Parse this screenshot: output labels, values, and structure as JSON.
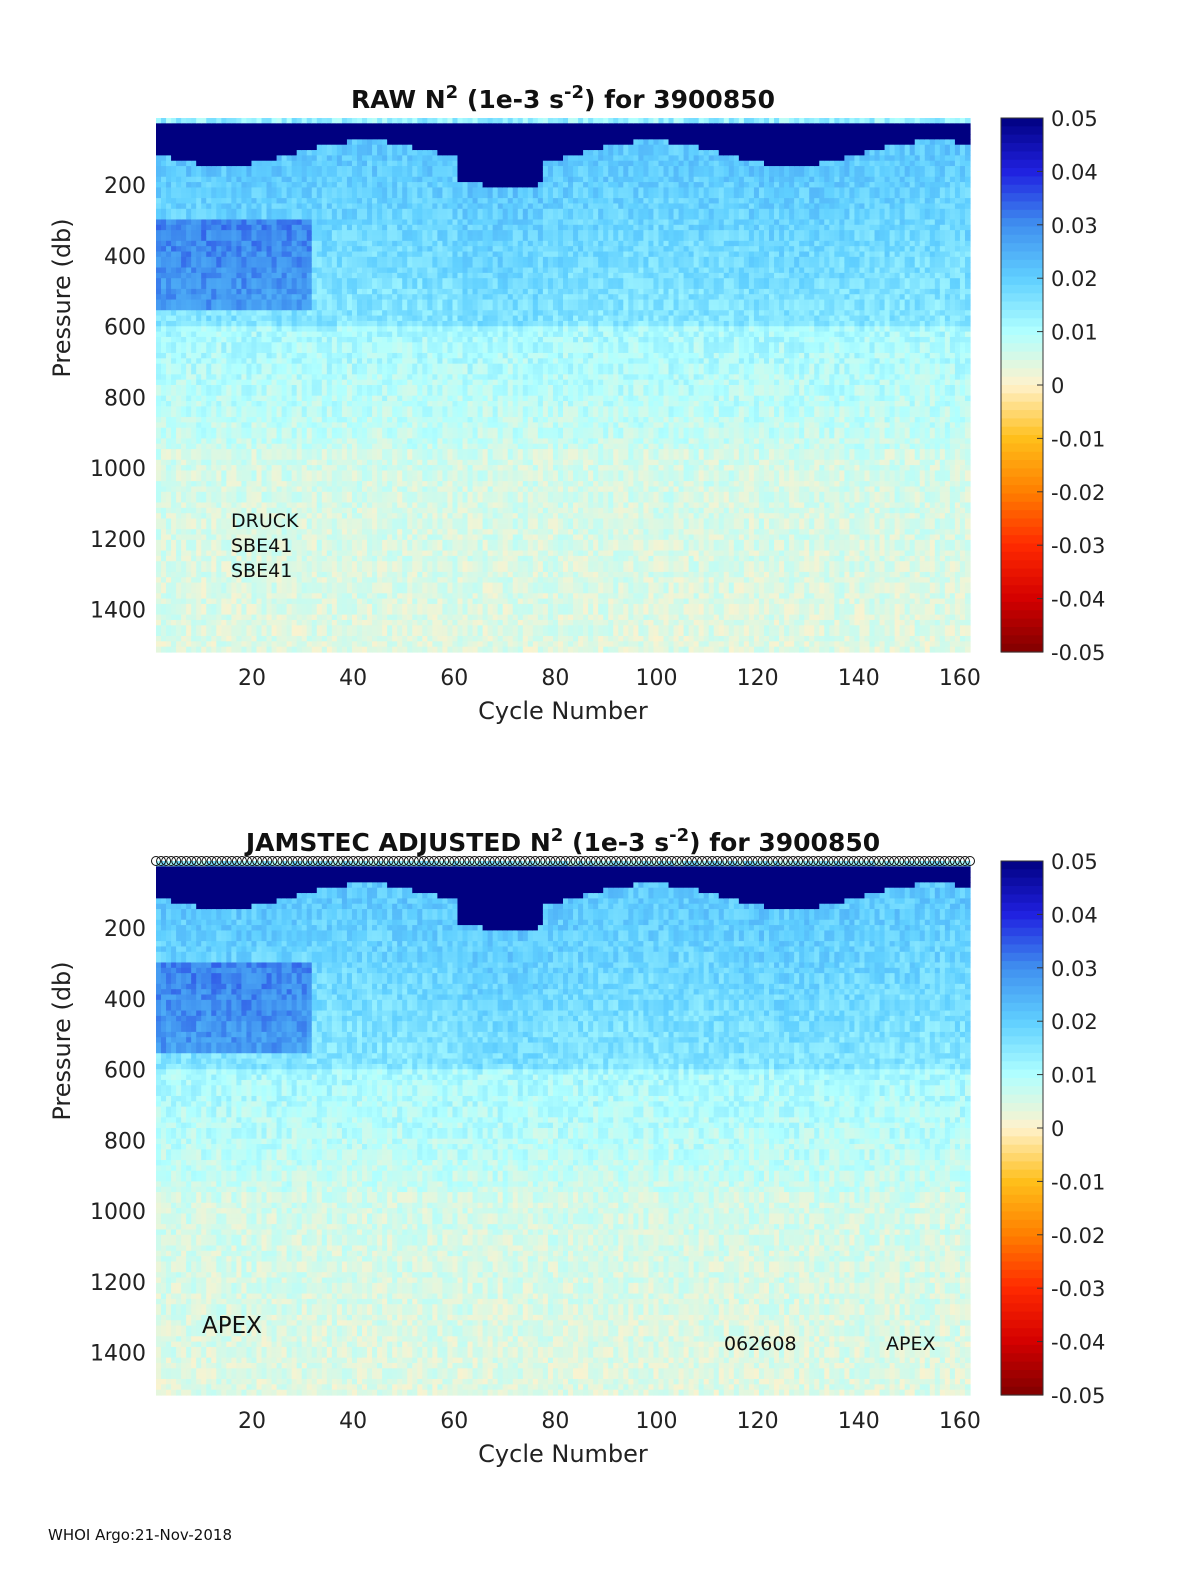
{
  "footer": "WHOI Argo:21-Nov-2018",
  "chart_data": [
    {
      "type": "heatmap",
      "title_parts": [
        "RAW N",
        "2",
        " (1e-3 s",
        "-2",
        ") for 3900850"
      ],
      "xlabel": "Cycle Number",
      "ylabel": "Pressure (db)",
      "xlim": [
        1,
        162
      ],
      "ylim": [
        1520,
        10
      ],
      "x_ticks": [
        20,
        40,
        60,
        80,
        100,
        120,
        140,
        160
      ],
      "y_ticks": [
        200,
        400,
        600,
        800,
        1000,
        1200,
        1400
      ],
      "colorbar": {
        "range": [
          -0.05,
          0.05
        ],
        "ticks": [
          "0.05",
          "0.04",
          "0.03",
          "0.02",
          "0.01",
          "0",
          "-0.01",
          "-0.02",
          "-0.03",
          "-0.04",
          "-0.05"
        ],
        "colors": [
          "#800000",
          "#d40000",
          "#ff2a00",
          "#ff7f00",
          "#ffbf1a",
          "#fff2cc",
          "#b0ffff",
          "#5fcfff",
          "#3f8fef",
          "#2020e0",
          "#000080"
        ]
      },
      "annotations": [
        "DRUCK",
        "SBE41",
        "SBE41"
      ],
      "show_markers": false,
      "description_of_values": "Stratification N2 per cycle/pressure: ~0.05 (saturated) at 10-150 db, ~0.02-0.03 at 150-600 db (strongest cycles 1-30, ~350-500 db), ~0.01 at 600-900 db, ~0.004-0.006 below 1000 db"
    },
    {
      "type": "heatmap",
      "title_parts": [
        "JAMSTEC  ADJUSTED N",
        "2",
        " (1e-3 s",
        "-2",
        ") for 3900850"
      ],
      "xlabel": "Cycle Number",
      "ylabel": "Pressure (db)",
      "xlim": [
        1,
        162
      ],
      "ylim": [
        1520,
        10
      ],
      "x_ticks": [
        20,
        40,
        60,
        80,
        100,
        120,
        140,
        160
      ],
      "y_ticks": [
        200,
        400,
        600,
        800,
        1000,
        1200,
        1400
      ],
      "colorbar": {
        "range": [
          -0.05,
          0.05
        ],
        "ticks": [
          "0.05",
          "0.04",
          "0.03",
          "0.02",
          "0.01",
          "0",
          "-0.01",
          "-0.02",
          "-0.03",
          "-0.04",
          "-0.05"
        ],
        "colors": [
          "#800000",
          "#d40000",
          "#ff2a00",
          "#ff7f00",
          "#ffbf1a",
          "#fff2cc",
          "#b0ffff",
          "#5fcfff",
          "#3f8fef",
          "#2020e0",
          "#000080"
        ]
      },
      "annotations": [
        "APEX",
        "062608",
        "APEX"
      ],
      "show_markers": true
    }
  ]
}
